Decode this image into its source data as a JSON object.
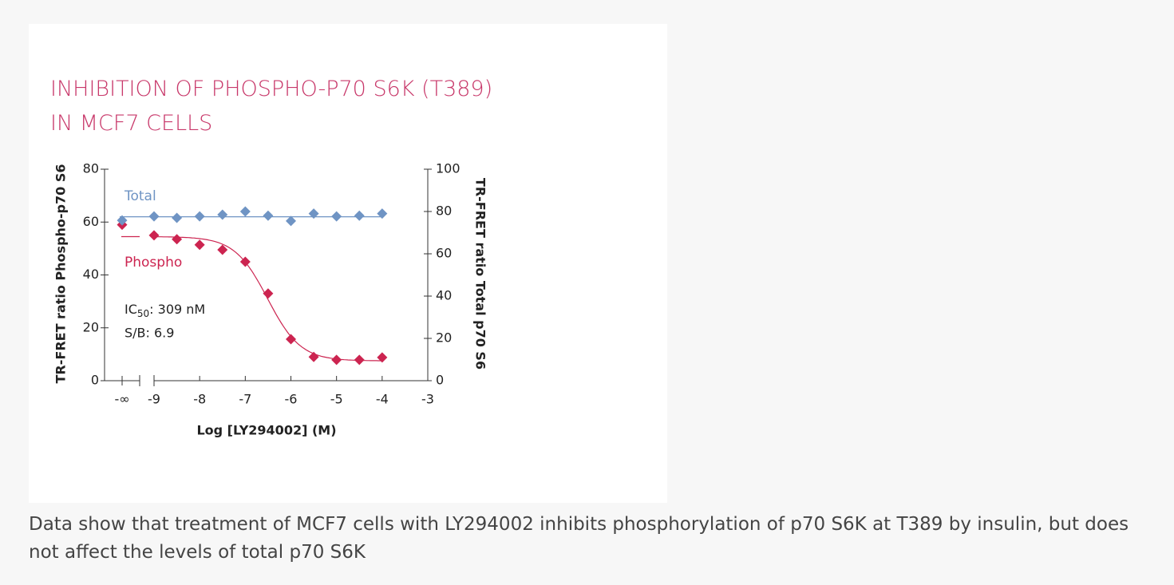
{
  "chart_data": {
    "type": "dose-response",
    "title": [
      "INHIBITION OF PHOSPHO-P70 S6K (T389)",
      "IN MCF7 CELLS"
    ],
    "x_label": "Log [LY294002] (M)",
    "y_label": "TR-FRET ratio Phospho-p70 S6",
    "y2_label": "TR-FRET ratio Total p70 S6",
    "control_label": "-∞",
    "x": [
      -9,
      -8.5,
      -8,
      -7.5,
      -7,
      -6.5,
      -6,
      -5.5,
      -5,
      -4.5,
      -4
    ],
    "xlim": [
      -9,
      -3
    ],
    "xticks": [
      -9,
      -8,
      -7,
      -6,
      -5,
      -4,
      -3
    ],
    "ylim": [
      0,
      80
    ],
    "yticks": [
      0,
      20,
      40,
      60,
      80
    ],
    "y2lim": [
      0,
      100
    ],
    "y2ticks": [
      0,
      20,
      40,
      60,
      80,
      100
    ],
    "series": [
      {
        "name": "Phospho",
        "color": "#cc2450",
        "axis": "y",
        "control_value": 59,
        "values": [
          55,
          53.5,
          51.4,
          49.5,
          45,
          33,
          15.7,
          9,
          7.9,
          7.9,
          8.8
        ],
        "fit": {
          "top": 54.5,
          "bottom": 7.5,
          "log_ic50": -6.51,
          "hill": 1.2
        }
      },
      {
        "name": "Total",
        "color": "#6f94c4",
        "axis": "y2",
        "control_value": 75.8,
        "values": [
          77.7,
          77,
          77.7,
          78.5,
          80,
          78,
          75.5,
          79,
          77.7,
          78,
          79
        ],
        "fit": {
          "level": 77.5
        }
      }
    ],
    "ic50": {
      "text": "IC",
      "subscript": "50",
      "value": ": 309 nM"
    },
    "signal_to_background": "S/B: 6.9"
  },
  "caption": " Data show that treatment of MCF7 cells with LY294002 inhibits phosphorylation of p70 S6K at T389 by insulin, but does not affect the levels of total p70 S6K"
}
